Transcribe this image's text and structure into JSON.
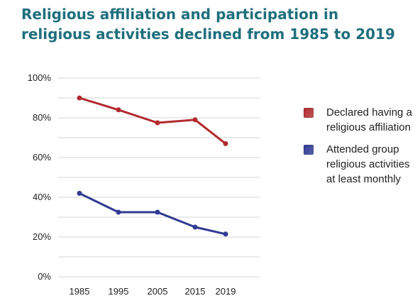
{
  "chart_data": {
    "type": "line",
    "title": "Religious affiliation and participation in religious activities declined from 1985 to 2019",
    "x": [
      "1985",
      "1995",
      "2005",
      "2015",
      "2019"
    ],
    "ylim": [
      0,
      100
    ],
    "yticks": [
      "0%",
      "20%",
      "40%",
      "60%",
      "80%",
      "100%"
    ],
    "grid": true,
    "legend_position": "right",
    "series": [
      {
        "name": "Declared having a religious affiliation",
        "color": "#b22a2e",
        "values": [
          90,
          84,
          77.5,
          79,
          67
        ]
      },
      {
        "name": "Attended group religious activities at least monthly",
        "color": "#2f3a93",
        "values": [
          42,
          32.5,
          32.5,
          25,
          21.5
        ]
      }
    ]
  }
}
